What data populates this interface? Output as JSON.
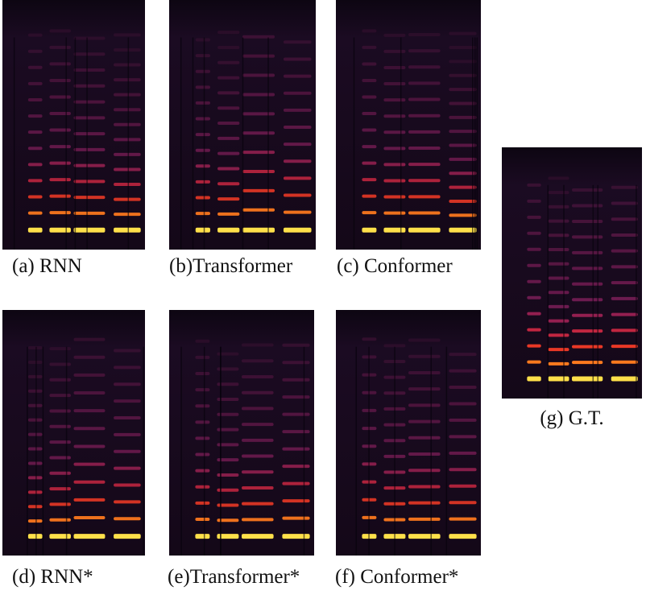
{
  "panels": [
    {
      "label": "(a) RNN"
    },
    {
      "label": "(b)Transformer"
    },
    {
      "label": "(c) Conformer"
    },
    {
      "label": "(d) RNN*"
    },
    {
      "label": "(e)Transformer*"
    },
    {
      "label": "(f) Conformer*"
    },
    {
      "label": "(g) G.T."
    }
  ]
}
